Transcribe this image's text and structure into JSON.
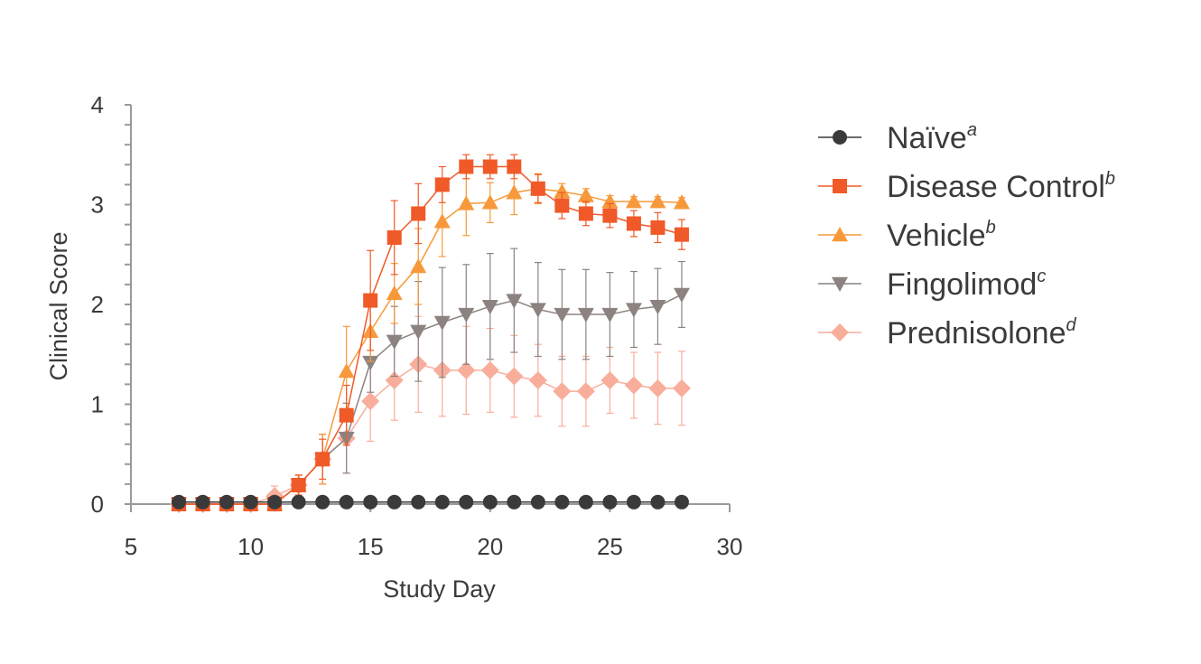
{
  "chart_data": {
    "type": "line",
    "xlabel": "Study Day",
    "ylabel": "Clinical Score",
    "xlim": [
      5,
      30
    ],
    "ylim": [
      0,
      4
    ],
    "xticks": [
      "5",
      "10",
      "15",
      "20",
      "25",
      "30"
    ],
    "yticks": [
      "0",
      "1",
      "2",
      "3",
      "4"
    ],
    "legend_position": "right",
    "grid": false,
    "x": [
      7,
      8,
      9,
      10,
      11,
      12,
      13,
      14,
      15,
      16,
      17,
      18,
      19,
      20,
      21,
      22,
      23,
      24,
      25,
      26,
      27,
      28
    ],
    "series": [
      {
        "name": "Naïve",
        "superscript": "a",
        "marker": "circle",
        "color": "#3a3a3a",
        "values": [
          0.02,
          0.02,
          0.02,
          0.02,
          0.02,
          0.02,
          0.02,
          0.02,
          0.02,
          0.02,
          0.02,
          0.02,
          0.02,
          0.02,
          0.02,
          0.02,
          0.02,
          0.02,
          0.02,
          0.02,
          0.02,
          0.02
        ],
        "errors": [
          0,
          0,
          0,
          0,
          0,
          0,
          0,
          0,
          0,
          0,
          0,
          0,
          0,
          0,
          0,
          0,
          0,
          0,
          0,
          0,
          0,
          0
        ]
      },
      {
        "name": "Disease Control",
        "superscript": "b",
        "marker": "square",
        "color": "#f05a28",
        "values": [
          0,
          0,
          0,
          0,
          0,
          0.19,
          0.45,
          0.89,
          2.04,
          2.67,
          2.91,
          3.2,
          3.38,
          3.38,
          3.38,
          3.16,
          2.99,
          2.91,
          2.89,
          2.81,
          2.77,
          2.7
        ],
        "errors": [
          0,
          0,
          0,
          0,
          0,
          0.1,
          0.2,
          0.3,
          0.5,
          0.37,
          0.3,
          0.18,
          0.12,
          0.12,
          0.12,
          0.14,
          0.13,
          0.12,
          0.12,
          0.13,
          0.15,
          0.15
        ]
      },
      {
        "name": "Vehicle",
        "superscript": "b",
        "marker": "triangle-up",
        "color": "#f7993a",
        "values": [
          0,
          0,
          0,
          0,
          0,
          0.19,
          0.45,
          1.33,
          1.73,
          2.11,
          2.38,
          2.83,
          3.01,
          3.02,
          3.12,
          3.16,
          3.13,
          3.09,
          3.03,
          3.03,
          3.03,
          3.02
        ],
        "errors": [
          0,
          0,
          0,
          0,
          0,
          0.1,
          0.25,
          0.45,
          0.3,
          0.3,
          0.38,
          0.35,
          0.32,
          0.2,
          0.22,
          0.15,
          0.08,
          0.07,
          0.06,
          0.05,
          0.05,
          0.05
        ]
      },
      {
        "name": "Fingolimod",
        "superscript": "c",
        "marker": "triangle-down",
        "color": "#8c8380",
        "values": [
          0,
          0,
          0,
          0,
          0,
          0.19,
          0.45,
          0.66,
          1.42,
          1.63,
          1.73,
          1.82,
          1.9,
          1.98,
          2.04,
          1.95,
          1.9,
          1.9,
          1.9,
          1.95,
          1.98,
          2.1
        ],
        "errors": [
          0,
          0,
          0,
          0,
          0,
          0.1,
          0.25,
          0.35,
          0.3,
          0.35,
          0.5,
          0.55,
          0.5,
          0.53,
          0.52,
          0.47,
          0.45,
          0.45,
          0.42,
          0.38,
          0.38,
          0.33
        ]
      },
      {
        "name": "Prednisolone",
        "superscript": "d",
        "marker": "diamond",
        "color": "#f9ad9b",
        "values": [
          0,
          0,
          0,
          0,
          0.08,
          0.19,
          0.45,
          0.66,
          1.03,
          1.24,
          1.4,
          1.34,
          1.34,
          1.34,
          1.28,
          1.24,
          1.13,
          1.13,
          1.24,
          1.19,
          1.16,
          1.16
        ],
        "errors": [
          0,
          0,
          0,
          0,
          0.1,
          0.1,
          0.25,
          0.35,
          0.4,
          0.4,
          0.48,
          0.46,
          0.44,
          0.42,
          0.41,
          0.36,
          0.35,
          0.35,
          0.33,
          0.33,
          0.36,
          0.37
        ]
      }
    ]
  }
}
